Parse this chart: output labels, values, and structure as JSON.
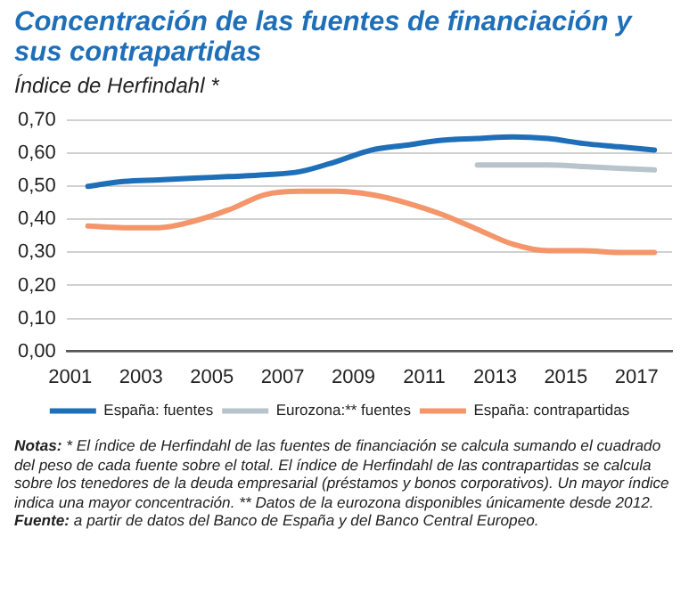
{
  "chart_data": {
    "type": "line",
    "title": "Concentración de las fuentes de financiación y sus contrapartidas",
    "subtitle": "Índice de Herfindahl *",
    "x": [
      2001.5,
      2002.5,
      2003.5,
      2004.5,
      2005.5,
      2006.5,
      2007.5,
      2008.5,
      2009.5,
      2010.5,
      2011.5,
      2012.5,
      2013.5,
      2014.5,
      2015.5,
      2016.5,
      2017.5
    ],
    "series": [
      {
        "name": "España: fuentes",
        "color": "#1f6fb8",
        "values": [
          0.5,
          0.515,
          0.52,
          0.525,
          0.53,
          0.535,
          0.545,
          0.575,
          0.61,
          0.625,
          0.64,
          0.645,
          0.65,
          0.645,
          0.63,
          0.62,
          0.61
        ]
      },
      {
        "name": "Eurozona:** fuentes",
        "color": "#b8c4cc",
        "values": [
          null,
          null,
          null,
          null,
          null,
          null,
          null,
          null,
          null,
          null,
          null,
          0.565,
          0.565,
          0.565,
          0.56,
          0.555,
          0.55
        ]
      },
      {
        "name": "España: contrapartidas",
        "color": "#f4956a",
        "values": [
          0.38,
          0.375,
          0.375,
          0.395,
          0.43,
          0.475,
          0.485,
          0.485,
          0.475,
          0.45,
          0.415,
          0.37,
          0.325,
          0.305,
          0.305,
          0.3,
          0.3
        ]
      }
    ],
    "xlim": [
      2000.9,
      2018
    ],
    "xticks": [
      2001,
      2003,
      2005,
      2007,
      2009,
      2011,
      2013,
      2015,
      2017
    ],
    "ylim": [
      0,
      0.7
    ],
    "yticks": [
      {
        "value": 0,
        "label": "0,00"
      },
      {
        "value": 0.1,
        "label": "0,10"
      },
      {
        "value": 0.2,
        "label": "0,20"
      },
      {
        "value": 0.3,
        "label": "0,30"
      },
      {
        "value": 0.4,
        "label": "0,40"
      },
      {
        "value": 0.5,
        "label": "0,50"
      },
      {
        "value": 0.6,
        "label": "0,60"
      },
      {
        "value": 0.7,
        "label": "0,70"
      }
    ],
    "grid": "y",
    "legend": "bottom",
    "marker": "none",
    "line_style": "solid",
    "annotations": [
      "Notas: * El índice de Herfindahl de las fuentes de financiación se calcula sumando el cuadrado del peso de cada fuente sobre el total. El índice de Herfindahl de las contrapartidas se calcula sobre los tenedores de la deuda empresarial (préstamos y bonos corporativos). Un mayor índice indica una mayor concentración. ** Datos de la eurozona disponibles únicamente desde 2012.",
      "Fuente: a partir de datos del Banco de España y del Banco Central Europeo."
    ]
  }
}
